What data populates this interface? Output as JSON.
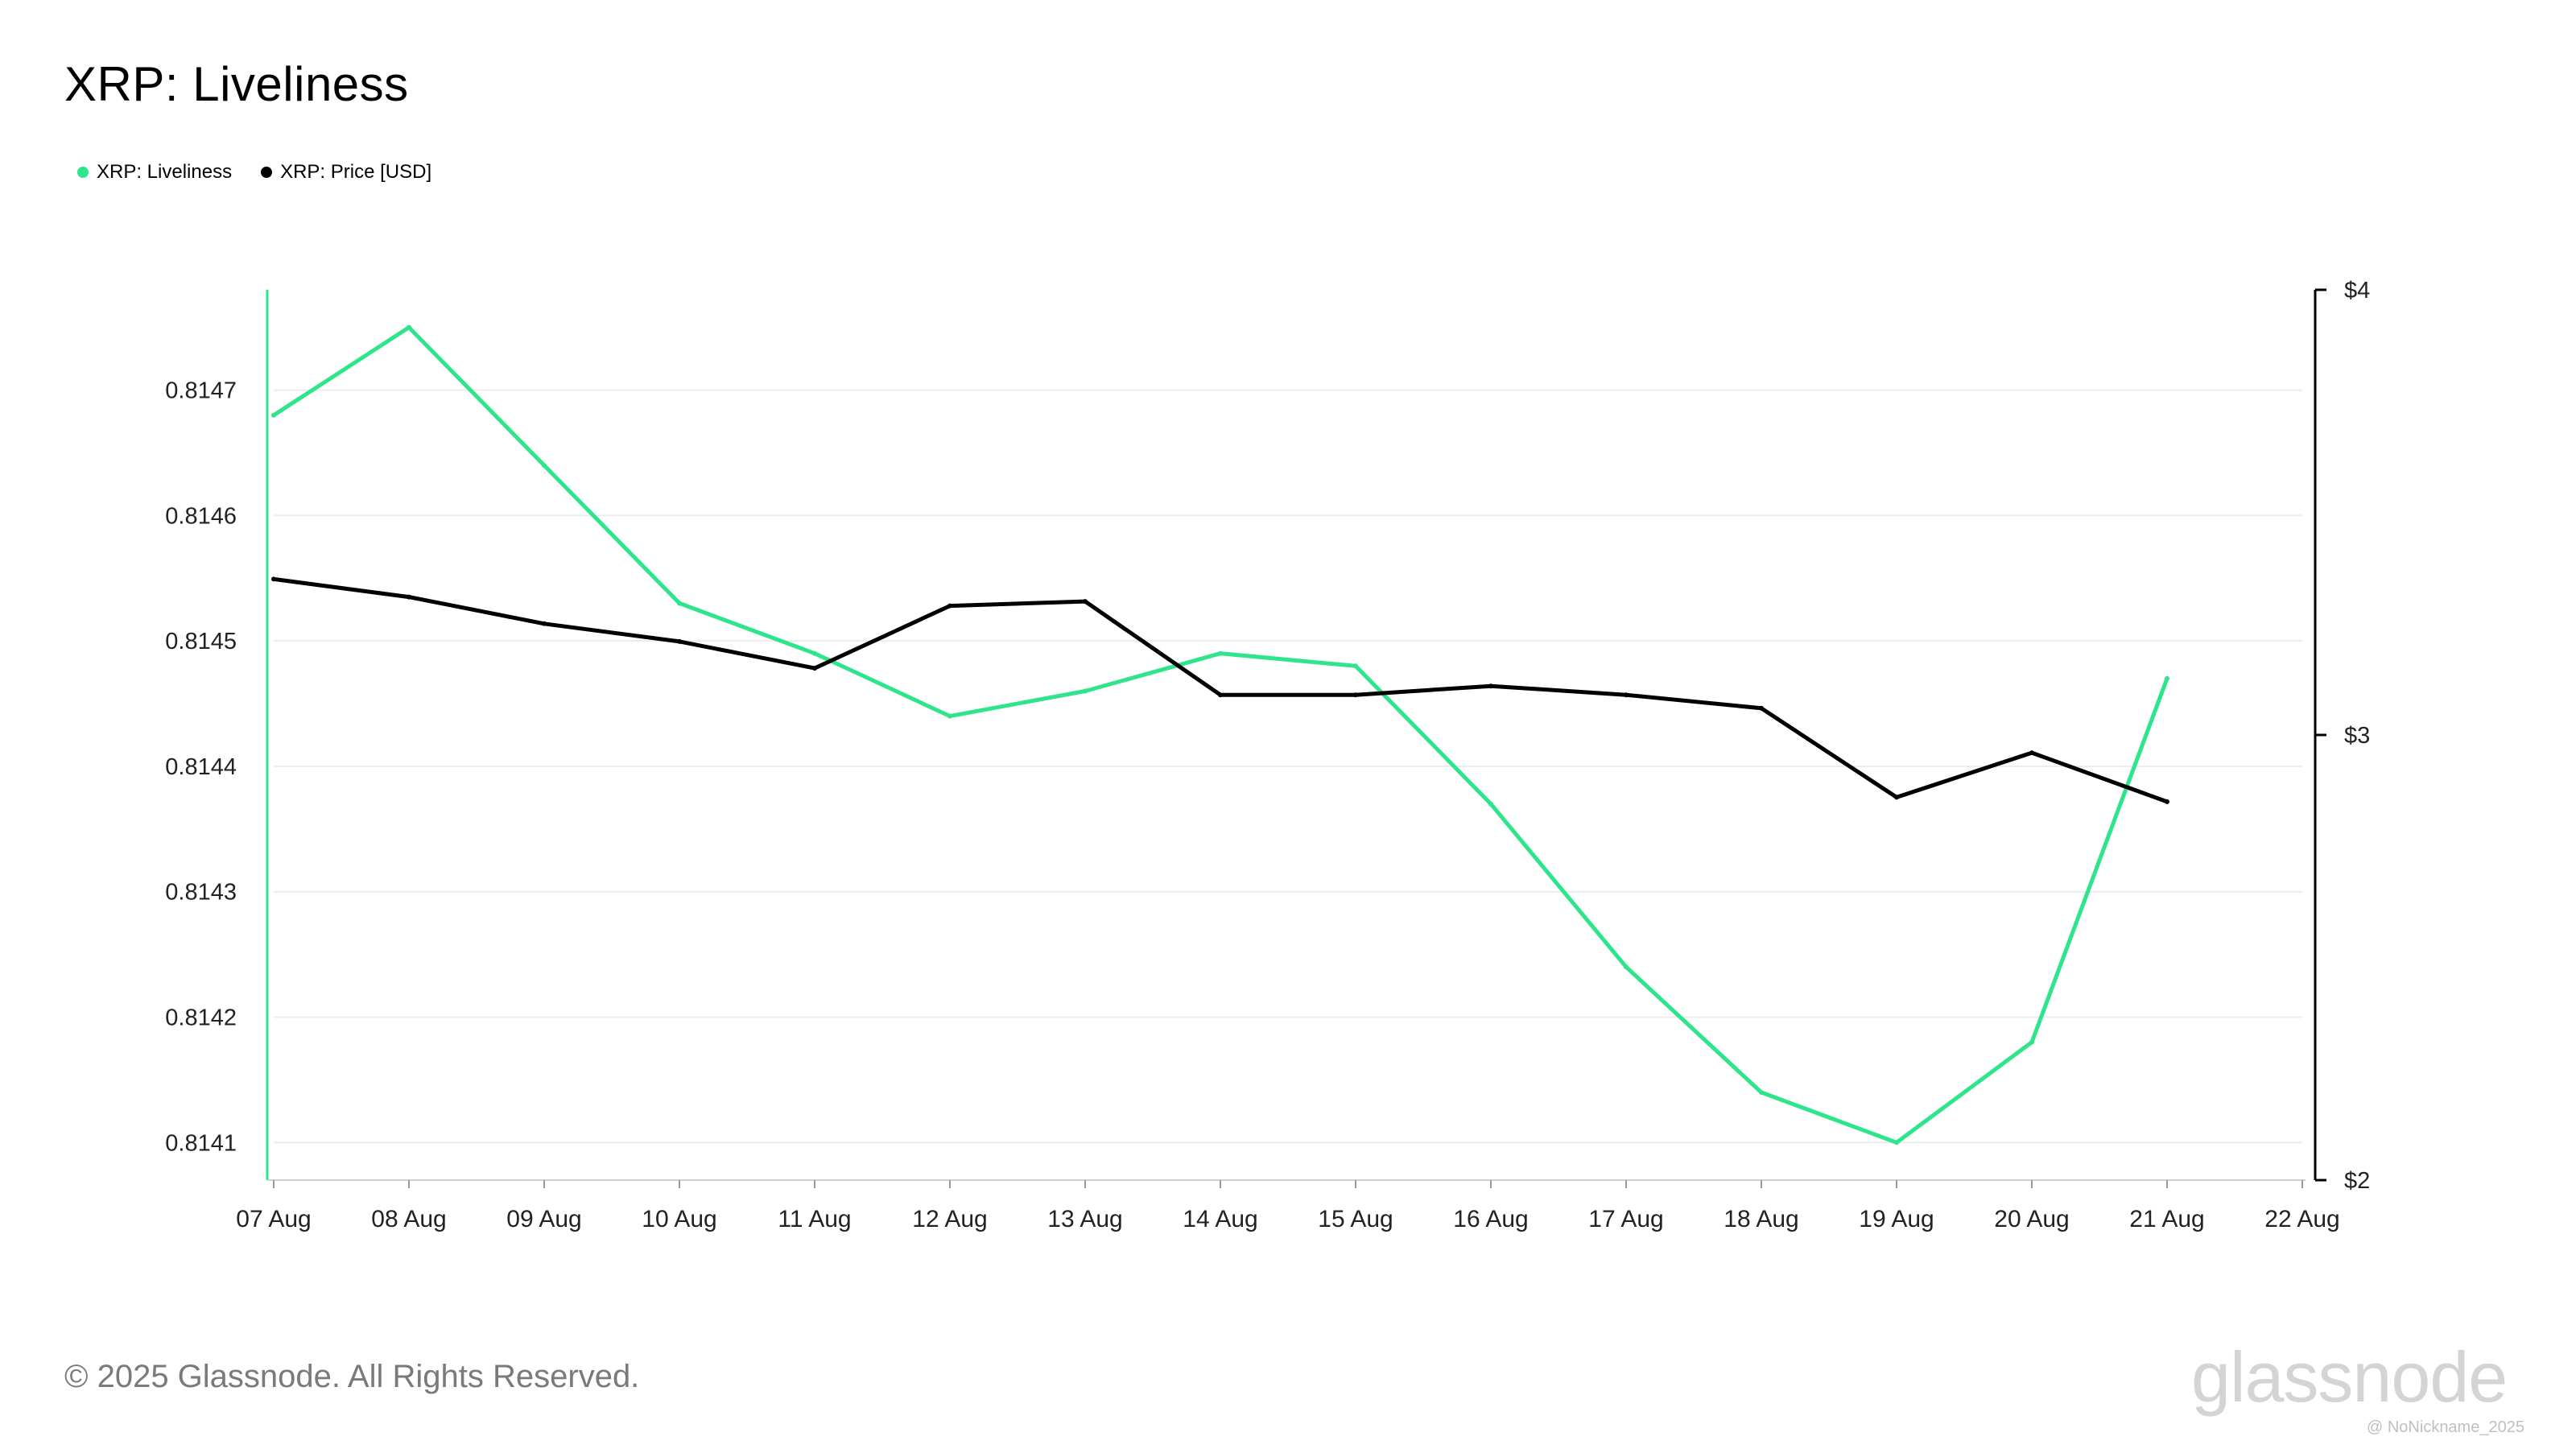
{
  "title": "XRP: Liveliness",
  "footer": {
    "copyright": "© 2025 Glassnode. All Rights Reserved.",
    "brand": "glassnode",
    "credit": "@ NoNickname_2025"
  },
  "colors": {
    "liveliness": "#2ee58c",
    "price": "#000000",
    "grid": "#ececec",
    "axis_text": "#222222"
  },
  "chart_data": {
    "type": "line",
    "x": [
      "07 Aug",
      "08 Aug",
      "09 Aug",
      "10 Aug",
      "11 Aug",
      "12 Aug",
      "13 Aug",
      "14 Aug",
      "15 Aug",
      "16 Aug",
      "17 Aug",
      "18 Aug",
      "19 Aug",
      "20 Aug",
      "21 Aug"
    ],
    "x_ticks": [
      "07 Aug",
      "08 Aug",
      "09 Aug",
      "10 Aug",
      "11 Aug",
      "12 Aug",
      "13 Aug",
      "14 Aug",
      "15 Aug",
      "16 Aug",
      "17 Aug",
      "18 Aug",
      "19 Aug",
      "20 Aug",
      "21 Aug",
      "22 Aug"
    ],
    "series": [
      {
        "name": "XRP: Liveliness",
        "axis": "left",
        "color": "#2ee58c",
        "values": [
          0.81468,
          0.81475,
          0.81464,
          0.81453,
          0.81449,
          0.81444,
          0.81446,
          0.81449,
          0.81448,
          0.81437,
          0.81424,
          0.81414,
          0.8141,
          0.81418,
          0.81447
        ]
      },
      {
        "name": "XRP: Price [USD]",
        "axis": "right",
        "color": "#000000",
        "values": [
          3.35,
          3.31,
          3.25,
          3.21,
          3.15,
          3.29,
          3.3,
          3.09,
          3.09,
          3.11,
          3.09,
          3.06,
          2.86,
          2.96,
          2.85
        ]
      }
    ],
    "y_left": {
      "ticks": [
        "0.8141",
        "0.8142",
        "0.8143",
        "0.8144",
        "0.8145",
        "0.8146",
        "0.8147"
      ],
      "range": [
        0.81407,
        0.81478
      ]
    },
    "y_right": {
      "ticks": [
        "$2",
        "$3",
        "$4"
      ],
      "tick_values": [
        2,
        3,
        4
      ],
      "range": [
        2,
        4
      ]
    },
    "grid": true,
    "legend": "top-left"
  }
}
